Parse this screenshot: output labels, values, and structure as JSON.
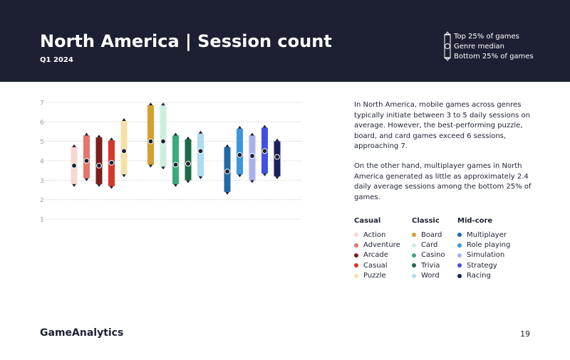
{
  "header": {
    "title": "North America | Session count",
    "subtitle": "Q1 2024"
  },
  "key": {
    "top": "Top 25% of games",
    "median": "Genre median",
    "bottom": "Bottom 25% of games"
  },
  "description": {
    "paragraph1": "In North America, mobile games across genres typically initiate between 3 to 5 daily sessions on average. However, the best-performing puzzle, board, and card games exceed 6 sessions, approaching 7.",
    "paragraph2": "On the other hand, multiplayer games in North America generated as little as approximately 2.4 daily average sessions among the bottom 25% of games."
  },
  "legend": [
    {
      "title": "Casual",
      "items": [
        {
          "label": "Action",
          "color": "#f9d6d2"
        },
        {
          "label": "Adventure",
          "color": "#e5766b"
        },
        {
          "label": "Arcade",
          "color": "#7b1f1c"
        },
        {
          "label": "Casual",
          "color": "#d9362b"
        },
        {
          "label": "Puzzle",
          "color": "#f7e0a6"
        }
      ]
    },
    {
      "title": "Classic",
      "items": [
        {
          "label": "Board",
          "color": "#d4a02f"
        },
        {
          "label": "Card",
          "color": "#cdeede"
        },
        {
          "label": "Casino",
          "color": "#3aaa7c"
        },
        {
          "label": "Trivia",
          "color": "#1d6a48"
        },
        {
          "label": "Word",
          "color": "#abdcf2"
        }
      ]
    },
    {
      "title": "Mid-core",
      "items": [
        {
          "label": "Multiplayer",
          "color": "#2269a8"
        },
        {
          "label": "Role playing",
          "color": "#3c98dc"
        },
        {
          "label": "Simulation",
          "color": "#aab2ee"
        },
        {
          "label": "Strategy",
          "color": "#4150e3"
        },
        {
          "label": "Racing",
          "color": "#1b2060"
        }
      ]
    }
  ],
  "chart_data": {
    "type": "range",
    "ylim": [
      1,
      7
    ],
    "yticks": [
      "1",
      "2",
      "3",
      "4",
      "5",
      "6",
      "7"
    ],
    "grid": true,
    "groups": [
      "Casual",
      "Classic",
      "Mid-core"
    ],
    "series": [
      {
        "name": "Action",
        "group": "Casual",
        "color": "#f9d6d2",
        "low": 2.8,
        "median": 3.75,
        "high": 4.7
      },
      {
        "name": "Adventure",
        "group": "Casual",
        "color": "#e5766b",
        "low": 3.1,
        "median": 4.0,
        "high": 5.3
      },
      {
        "name": "Arcade",
        "group": "Casual",
        "color": "#7b1f1c",
        "low": 2.8,
        "median": 3.75,
        "high": 5.2
      },
      {
        "name": "Casual",
        "group": "Casual",
        "color": "#d9362b",
        "low": 2.7,
        "median": 3.9,
        "high": 5.05
      },
      {
        "name": "Puzzle",
        "group": "Casual",
        "color": "#f7e0a6",
        "low": 3.3,
        "median": 4.5,
        "high": 6.05
      },
      {
        "name": "Board",
        "group": "Classic",
        "color": "#d4a02f",
        "low": 3.8,
        "median": 5.0,
        "high": 6.85
      },
      {
        "name": "Card",
        "group": "Classic",
        "color": "#cdeede",
        "low": 3.7,
        "median": 5.0,
        "high": 6.85
      },
      {
        "name": "Casino",
        "group": "Classic",
        "color": "#3aaa7c",
        "low": 2.8,
        "median": 3.8,
        "high": 5.3
      },
      {
        "name": "Trivia",
        "group": "Classic",
        "color": "#1d6a48",
        "low": 3.0,
        "median": 3.85,
        "high": 5.1
      },
      {
        "name": "Word",
        "group": "Classic",
        "color": "#abdcf2",
        "low": 3.2,
        "median": 4.5,
        "high": 5.4
      },
      {
        "name": "Multiplayer",
        "group": "Mid-core",
        "color": "#2269a8",
        "low": 2.4,
        "median": 3.45,
        "high": 4.7
      },
      {
        "name": "Role playing",
        "group": "Mid-core",
        "color": "#3c98dc",
        "low": 3.3,
        "median": 4.3,
        "high": 5.65
      },
      {
        "name": "Simulation",
        "group": "Mid-core",
        "color": "#aab2ee",
        "low": 3.0,
        "median": 4.25,
        "high": 5.3
      },
      {
        "name": "Strategy",
        "group": "Mid-core",
        "color": "#4150e3",
        "low": 3.35,
        "median": 4.5,
        "high": 5.7
      },
      {
        "name": "Racing",
        "group": "Mid-core",
        "color": "#1b2060",
        "low": 3.2,
        "median": 4.2,
        "high": 5.0
      }
    ]
  },
  "footer": {
    "logo": "GameAnalytics",
    "page_number": "19"
  }
}
